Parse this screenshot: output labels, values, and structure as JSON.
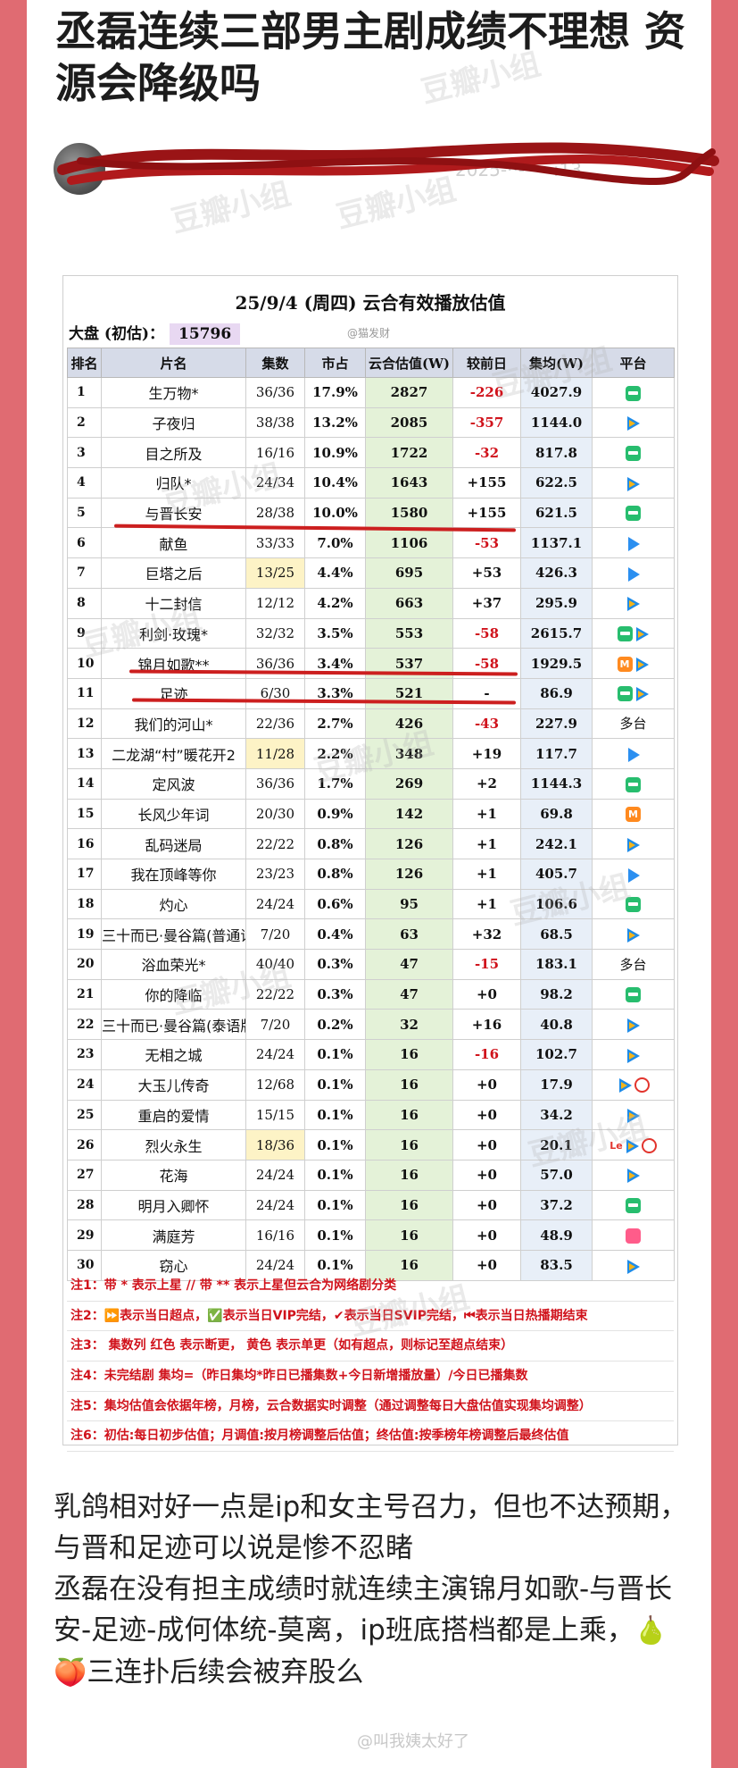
{
  "post": {
    "title": "丞磊连续三部男主剧成绩不理想 资源会降级吗",
    "author_date": "2025-··-·· ··:13"
  },
  "watermarks": [
    "豆瓣小组"
  ],
  "sheet": {
    "title": "25/9/4 (周四) 云合有效播放估值",
    "dapan_label": "大盘 (初估)：",
    "dapan_value": "15796",
    "credit": "@猫发财",
    "headers": [
      "排名",
      "片名",
      "集数",
      "市占",
      "云合估值(W)",
      "较前日",
      "集均(W)",
      "平台"
    ],
    "rows": [
      {
        "rank": "1",
        "name": "生万物*",
        "eps": "36/36",
        "share": "17.9%",
        "est": "2827",
        "delta": "-226",
        "avg": "4027.9",
        "platform": [
          "iqiyi"
        ]
      },
      {
        "rank": "2",
        "name": "子夜归",
        "eps": "38/38",
        "share": "13.2%",
        "est": "2085",
        "delta": "-357",
        "avg": "1144.0",
        "platform": [
          "tencent"
        ]
      },
      {
        "rank": "3",
        "name": "目之所及",
        "eps": "16/16",
        "share": "10.9%",
        "est": "1722",
        "delta": "-32",
        "avg": "817.8",
        "platform": [
          "iqiyi"
        ]
      },
      {
        "rank": "4",
        "name": "归队*",
        "eps": "24/34",
        "share": "10.4%",
        "est": "1643",
        "delta": "+155",
        "avg": "622.5",
        "platform": [
          "tencent"
        ]
      },
      {
        "rank": "5",
        "name": "与晋长安",
        "eps": "28/38",
        "share": "10.0%",
        "est": "1580",
        "delta": "+155",
        "avg": "621.5",
        "platform": [
          "iqiyi"
        ]
      },
      {
        "rank": "6",
        "name": "献鱼",
        "eps": "33/33",
        "share": "7.0%",
        "est": "1106",
        "delta": "-53",
        "avg": "1137.1",
        "platform": [
          "youku"
        ]
      },
      {
        "rank": "7",
        "name": "巨塔之后",
        "eps": "13/25",
        "share": "4.4%",
        "est": "695",
        "delta": "+53",
        "avg": "426.3",
        "platform": [
          "youku"
        ]
      },
      {
        "rank": "8",
        "name": "十二封信",
        "eps": "12/12",
        "share": "4.2%",
        "est": "663",
        "delta": "+37",
        "avg": "295.9",
        "platform": [
          "tencent"
        ]
      },
      {
        "rank": "9",
        "name": "利剑·玫瑰*",
        "eps": "32/32",
        "share": "3.5%",
        "est": "553",
        "delta": "-58",
        "avg": "2615.7",
        "platform": [
          "iqiyi",
          "tencent"
        ]
      },
      {
        "rank": "10",
        "name": "锦月如歌**",
        "eps": "36/36",
        "share": "3.4%",
        "est": "537",
        "delta": "-58",
        "avg": "1929.5",
        "platform": [
          "mango",
          "tencent"
        ]
      },
      {
        "rank": "11",
        "name": "足迹",
        "eps": "6/30",
        "share": "3.3%",
        "est": "521",
        "delta": "-",
        "avg": "86.9",
        "platform": [
          "iqiyi",
          "tencent"
        ]
      },
      {
        "rank": "12",
        "name": "我们的河山*",
        "eps": "22/36",
        "share": "2.7%",
        "est": "426",
        "delta": "-43",
        "avg": "227.9",
        "platform": [
          "多台"
        ]
      },
      {
        "rank": "13",
        "name": "二龙湖“村”暖花开2",
        "eps": "11/28",
        "share": "2.2%",
        "est": "348",
        "delta": "+19",
        "avg": "117.7",
        "platform": [
          "youku"
        ]
      },
      {
        "rank": "14",
        "name": "定风波",
        "eps": "36/36",
        "share": "1.7%",
        "est": "269",
        "delta": "+2",
        "avg": "1144.3",
        "platform": [
          "iqiyi"
        ]
      },
      {
        "rank": "15",
        "name": "长风少年词",
        "eps": "20/30",
        "share": "0.9%",
        "est": "142",
        "delta": "+1",
        "avg": "69.8",
        "platform": [
          "mango"
        ]
      },
      {
        "rank": "16",
        "name": "乱码迷局",
        "eps": "22/22",
        "share": "0.8%",
        "est": "126",
        "delta": "+1",
        "avg": "242.1",
        "platform": [
          "tencent"
        ]
      },
      {
        "rank": "17",
        "name": "我在顶峰等你",
        "eps": "23/23",
        "share": "0.8%",
        "est": "126",
        "delta": "+1",
        "avg": "405.7",
        "platform": [
          "youku"
        ]
      },
      {
        "rank": "18",
        "name": "灼心",
        "eps": "24/24",
        "share": "0.6%",
        "est": "95",
        "delta": "+1",
        "avg": "106.6",
        "platform": [
          "iqiyi"
        ]
      },
      {
        "rank": "19",
        "name": "三十而已·曼谷篇(普通话版",
        "eps": "7/20",
        "share": "0.4%",
        "est": "63",
        "delta": "+32",
        "avg": "68.5",
        "platform": [
          "tencent"
        ]
      },
      {
        "rank": "20",
        "name": "浴血荣光*",
        "eps": "40/40",
        "share": "0.3%",
        "est": "47",
        "delta": "-15",
        "avg": "183.1",
        "platform": [
          "多台"
        ]
      },
      {
        "rank": "21",
        "name": "你的降临",
        "eps": "22/22",
        "share": "0.3%",
        "est": "47",
        "delta": "+0",
        "avg": "98.2",
        "platform": [
          "iqiyi"
        ]
      },
      {
        "rank": "22",
        "name": "三十而已·曼谷篇(泰语版)",
        "eps": "7/20",
        "share": "0.2%",
        "est": "32",
        "delta": "+16",
        "avg": "40.8",
        "platform": [
          "tencent"
        ]
      },
      {
        "rank": "23",
        "name": "无相之城",
        "eps": "24/24",
        "share": "0.1%",
        "est": "16",
        "delta": "-16",
        "avg": "102.7",
        "platform": [
          "tencent"
        ]
      },
      {
        "rank": "24",
        "name": "大玉儿传奇",
        "eps": "12/68",
        "share": "0.1%",
        "est": "16",
        "delta": "+0",
        "avg": "17.9",
        "platform": [
          "tencent",
          "mgred"
        ]
      },
      {
        "rank": "25",
        "name": "重启的爱情",
        "eps": "15/15",
        "share": "0.1%",
        "est": "16",
        "delta": "+0",
        "avg": "34.2",
        "platform": [
          "tencent"
        ]
      },
      {
        "rank": "26",
        "name": "烈火永生",
        "eps": "18/36",
        "share": "0.1%",
        "est": "16",
        "delta": "+0",
        "avg": "20.1",
        "platform": [
          "le",
          "tencent",
          "mgred"
        ]
      },
      {
        "rank": "27",
        "name": "花海",
        "eps": "24/24",
        "share": "0.1%",
        "est": "16",
        "delta": "+0",
        "avg": "57.0",
        "platform": [
          "tencent"
        ]
      },
      {
        "rank": "28",
        "name": "明月入卿怀",
        "eps": "24/24",
        "share": "0.1%",
        "est": "16",
        "delta": "+0",
        "avg": "37.2",
        "platform": [
          "iqiyi"
        ]
      },
      {
        "rank": "29",
        "name": "满庭芳",
        "eps": "16/16",
        "share": "0.1%",
        "est": "16",
        "delta": "+0",
        "avg": "48.9",
        "platform": [
          "pink"
        ]
      },
      {
        "rank": "30",
        "name": "窃心",
        "eps": "24/24",
        "share": "0.1%",
        "est": "16",
        "delta": "+0",
        "avg": "83.5",
        "platform": [
          "tencent"
        ]
      }
    ],
    "yellow_eps_rows": [
      "7",
      "13",
      "26"
    ],
    "notes": [
      "注1：带 * 表示上星 // 带 ** 表示上星但云合为网络剧分类",
      "注2：⏩表示当日超点，✅表示当日VIP完结，✔表示当日SVIP完结，⏮表示当日热播期结束",
      "注3：  集数列   红色  表示断更，  黄色  表示单更（如有超点，则标记至超点结束）",
      "注4：未完结剧 集均=（昨日集均*昨日已播集数+今日新增播放量）/今日已播集数",
      "注5：集均估值会依据年榜，月榜，云合数据实时调整（通过调整每日大盘估值实现集均调整）",
      "注6：初估:每日初步估值；月调值:按月榜调整后估值；终估值:按季榜年榜调整后最终估值"
    ]
  },
  "body": {
    "line1": "乳鸽相对好一点是ip和女主号召力，但也不达预期，与晋和足迹可以说是惨不忍睹",
    "line2": "丞磊在没有担主成绩时就连续主演锦月如歌-与晋长安-足迹-成何体统-莫离，ip班底搭档都是上乘，",
    "emoji1": "🍐",
    "emoji2": "🍑",
    "line3": "三连扑后续会被弃股么"
  },
  "footer_watermark": "@叫我姨太好了",
  "colors": {
    "frame": "#e06b72",
    "negative": "#d0121b",
    "estimate_bg": "#e4f2d8",
    "header_bg": "#d6dbe8",
    "underline": "#cc1f1f"
  }
}
